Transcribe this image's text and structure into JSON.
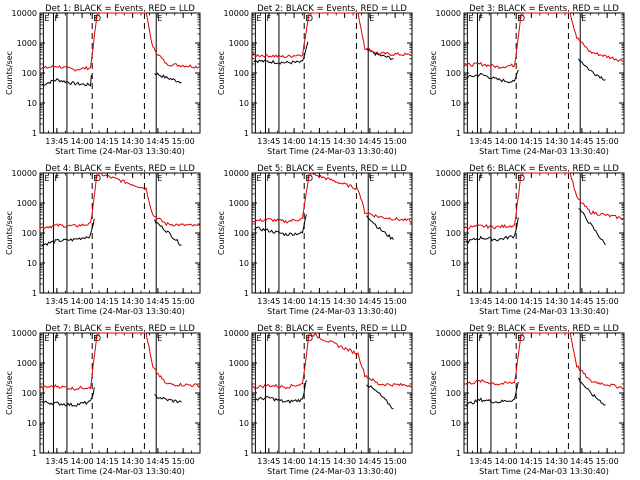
{
  "figure": {
    "xlabel": "Start Time (24-Mar-03 13:30:40)",
    "ylabel": "Counts/sec",
    "x_ticks": [
      "13:45",
      "14:00",
      "14:15",
      "14:30",
      "14:45",
      "15:00"
    ],
    "y_ticks": [
      "1",
      "10",
      "100",
      "1000",
      "10000"
    ],
    "colors": {
      "events": "#000000",
      "lld": "#e00000",
      "axes": "#000000"
    },
    "marker_labels": [
      "E",
      "F",
      "E",
      "D",
      "E"
    ]
  },
  "chart_data": [
    {
      "type": "line",
      "title": "Det 1: BLACK = Events, RED = LLD",
      "xlabel": "Start Time (24-Mar-03 13:30:40)",
      "ylabel": "Counts/sec",
      "log_y": true,
      "ylim": [
        1,
        10000
      ],
      "xlim": [
        "13:35",
        "15:10"
      ],
      "series": [
        {
          "name": "Events",
          "x": [
            "13:36",
            "13:45",
            "13:55",
            "14:05",
            "14:06",
            "14:39",
            "14:43",
            "14:50",
            "14:59"
          ],
          "values": [
            40,
            60,
            45,
            40,
            180,
            null,
            100,
            70,
            50
          ]
        },
        {
          "name": "LLD",
          "x": [
            "13:35",
            "13:45",
            "13:55",
            "14:05",
            "14:09",
            "14:38",
            "14:42",
            "14:50",
            "15:10"
          ],
          "values": [
            140,
            170,
            130,
            150,
            10000,
            10000,
            700,
            200,
            160
          ]
        }
      ]
    },
    {
      "type": "line",
      "title": "Det 2: BLACK = Events, RED = LLD",
      "xlabel": "Start Time (24-Mar-03 13:30:40)",
      "ylabel": "Counts/sec",
      "log_y": true,
      "ylim": [
        1,
        10000
      ],
      "xlim": [
        "13:35",
        "15:10"
      ],
      "series": [
        {
          "name": "Events",
          "x": [
            "13:36",
            "13:45",
            "13:55",
            "14:05",
            "14:09",
            "14:38",
            "14:43",
            "14:50",
            "14:59"
          ],
          "values": [
            260,
            240,
            220,
            230,
            1500,
            null,
            600,
            400,
            300
          ]
        },
        {
          "name": "LLD",
          "x": [
            "13:35",
            "13:45",
            "13:55",
            "14:05",
            "14:09",
            "14:38",
            "14:42",
            "14:50",
            "15:10"
          ],
          "values": [
            400,
            380,
            350,
            420,
            10000,
            10000,
            700,
            450,
            400
          ]
        }
      ]
    },
    {
      "type": "line",
      "title": "Det 3: BLACK = Events, RED = LLD",
      "xlabel": "Start Time (24-Mar-03 13:30:40)",
      "ylabel": "Counts/sec",
      "log_y": true,
      "ylim": [
        1,
        10000
      ],
      "xlim": [
        "13:35",
        "15:10"
      ],
      "series": [
        {
          "name": "Events",
          "x": [
            "13:36",
            "13:45",
            "13:55",
            "14:05",
            "14:08",
            "14:39",
            "14:43",
            "14:50",
            "14:59"
          ],
          "values": [
            70,
            90,
            60,
            50,
            200,
            null,
            300,
            120,
            60
          ]
        },
        {
          "name": "LLD",
          "x": [
            "13:35",
            "13:45",
            "13:55",
            "14:05",
            "14:09",
            "14:38",
            "14:42",
            "14:50",
            "15:10"
          ],
          "values": [
            180,
            200,
            160,
            180,
            10000,
            10000,
            1500,
            500,
            250
          ]
        }
      ]
    },
    {
      "type": "line",
      "title": "Det 4: BLACK = Events, RED = LLD",
      "xlabel": "Start Time (24-Mar-03 13:30:40)",
      "ylabel": "Counts/sec",
      "log_y": true,
      "ylim": [
        1,
        10000
      ],
      "xlim": [
        "13:35",
        "15:10"
      ],
      "series": [
        {
          "name": "Events",
          "x": [
            "13:36",
            "13:45",
            "13:55",
            "14:05",
            "14:08",
            "14:39",
            "14:43",
            "14:50",
            "14:59"
          ],
          "values": [
            40,
            55,
            60,
            80,
            500,
            null,
            250,
            120,
            40
          ]
        },
        {
          "name": "LLD",
          "x": [
            "13:35",
            "13:45",
            "13:55",
            "14:05",
            "14:09",
            "14:38",
            "14:42",
            "14:50",
            "15:10"
          ],
          "values": [
            150,
            180,
            170,
            200,
            10000,
            3000,
            400,
            200,
            170
          ]
        }
      ]
    },
    {
      "type": "line",
      "title": "Det 5: BLACK = Events, RED = LLD",
      "xlabel": "Start Time (24-Mar-03 13:30:40)",
      "ylabel": "Counts/sec",
      "log_y": true,
      "ylim": [
        1,
        10000
      ],
      "xlim": [
        "13:35",
        "15:10"
      ],
      "series": [
        {
          "name": "Events",
          "x": [
            "13:36",
            "13:45",
            "13:55",
            "14:05",
            "14:08",
            "14:39",
            "14:43",
            "14:50",
            "14:59"
          ],
          "values": [
            150,
            120,
            90,
            100,
            700,
            null,
            400,
            150,
            60
          ]
        },
        {
          "name": "LLD",
          "x": [
            "13:35",
            "13:45",
            "13:55",
            "14:05",
            "14:09",
            "14:38",
            "14:42",
            "14:50",
            "15:10"
          ],
          "values": [
            250,
            280,
            240,
            300,
            10000,
            3000,
            500,
            350,
            250
          ]
        }
      ]
    },
    {
      "type": "line",
      "title": "Det 6: BLACK = Events, RED = LLD",
      "xlabel": "Start Time (24-Mar-03 13:30:40)",
      "ylabel": "Counts/sec",
      "log_y": true,
      "ylim": [
        1,
        10000
      ],
      "xlim": [
        "13:35",
        "15:10"
      ],
      "series": [
        {
          "name": "Events",
          "x": [
            "13:36",
            "13:45",
            "13:55",
            "14:05",
            "14:08",
            "14:39",
            "14:43",
            "14:50",
            "14:59"
          ],
          "values": [
            50,
            70,
            60,
            80,
            500,
            null,
            700,
            200,
            40
          ]
        },
        {
          "name": "LLD",
          "x": [
            "13:35",
            "13:45",
            "13:55",
            "14:05",
            "14:09",
            "14:38",
            "14:42",
            "14:50",
            "15:10"
          ],
          "values": [
            150,
            170,
            160,
            180,
            10000,
            10000,
            1500,
            500,
            300
          ]
        }
      ]
    },
    {
      "type": "line",
      "title": "Det 7: BLACK = Events, RED = LLD",
      "xlabel": "Start Time (24-Mar-03 13:30:40)",
      "ylabel": "Counts/sec",
      "log_y": true,
      "ylim": [
        1,
        10000
      ],
      "xlim": [
        "13:35",
        "15:10"
      ],
      "series": [
        {
          "name": "Events",
          "x": [
            "13:36",
            "13:45",
            "13:55",
            "14:05",
            "14:08",
            "14:39",
            "14:43",
            "14:50",
            "14:59"
          ],
          "values": [
            50,
            45,
            40,
            50,
            200,
            null,
            80,
            60,
            50
          ]
        },
        {
          "name": "LLD",
          "x": [
            "13:35",
            "13:45",
            "13:55",
            "14:05",
            "14:09",
            "14:38",
            "14:42",
            "14:50",
            "15:10"
          ],
          "values": [
            150,
            170,
            140,
            160,
            10000,
            10000,
            700,
            200,
            180
          ]
        }
      ]
    },
    {
      "type": "line",
      "title": "Det 8: BLACK = Events, RED = LLD",
      "xlabel": "Start Time (24-Mar-03 13:30:40)",
      "ylabel": "Counts/sec",
      "log_y": true,
      "ylim": [
        1,
        10000
      ],
      "xlim": [
        "13:35",
        "15:10"
      ],
      "series": [
        {
          "name": "Events",
          "x": [
            "13:36",
            "13:45",
            "13:55",
            "14:05",
            "14:08",
            "14:39",
            "14:43",
            "14:50",
            "14:59"
          ],
          "values": [
            60,
            70,
            50,
            60,
            500,
            null,
            200,
            100,
            30
          ]
        },
        {
          "name": "LLD",
          "x": [
            "13:35",
            "13:45",
            "13:55",
            "14:05",
            "14:09",
            "14:38",
            "14:42",
            "14:50",
            "15:10"
          ],
          "values": [
            150,
            180,
            160,
            200,
            10000,
            2000,
            400,
            200,
            180
          ]
        }
      ]
    },
    {
      "type": "line",
      "title": "Det 9: BLACK = Events, RED = LLD",
      "xlabel": "Start Time (24-Mar-03 13:30:40)",
      "ylabel": "Counts/sec",
      "log_y": true,
      "ylim": [
        1,
        10000
      ],
      "xlim": [
        "13:35",
        "15:10"
      ],
      "series": [
        {
          "name": "Events",
          "x": [
            "13:36",
            "13:45",
            "13:55",
            "14:05",
            "14:08",
            "14:39",
            "14:43",
            "14:50",
            "14:59"
          ],
          "values": [
            40,
            60,
            50,
            60,
            400,
            null,
            300,
            100,
            40
          ]
        },
        {
          "name": "LLD",
          "x": [
            "13:35",
            "13:45",
            "13:55",
            "14:05",
            "14:09",
            "14:38",
            "14:42",
            "14:50",
            "15:10"
          ],
          "values": [
            200,
            250,
            200,
            220,
            10000,
            10000,
            800,
            250,
            150
          ]
        }
      ]
    }
  ]
}
